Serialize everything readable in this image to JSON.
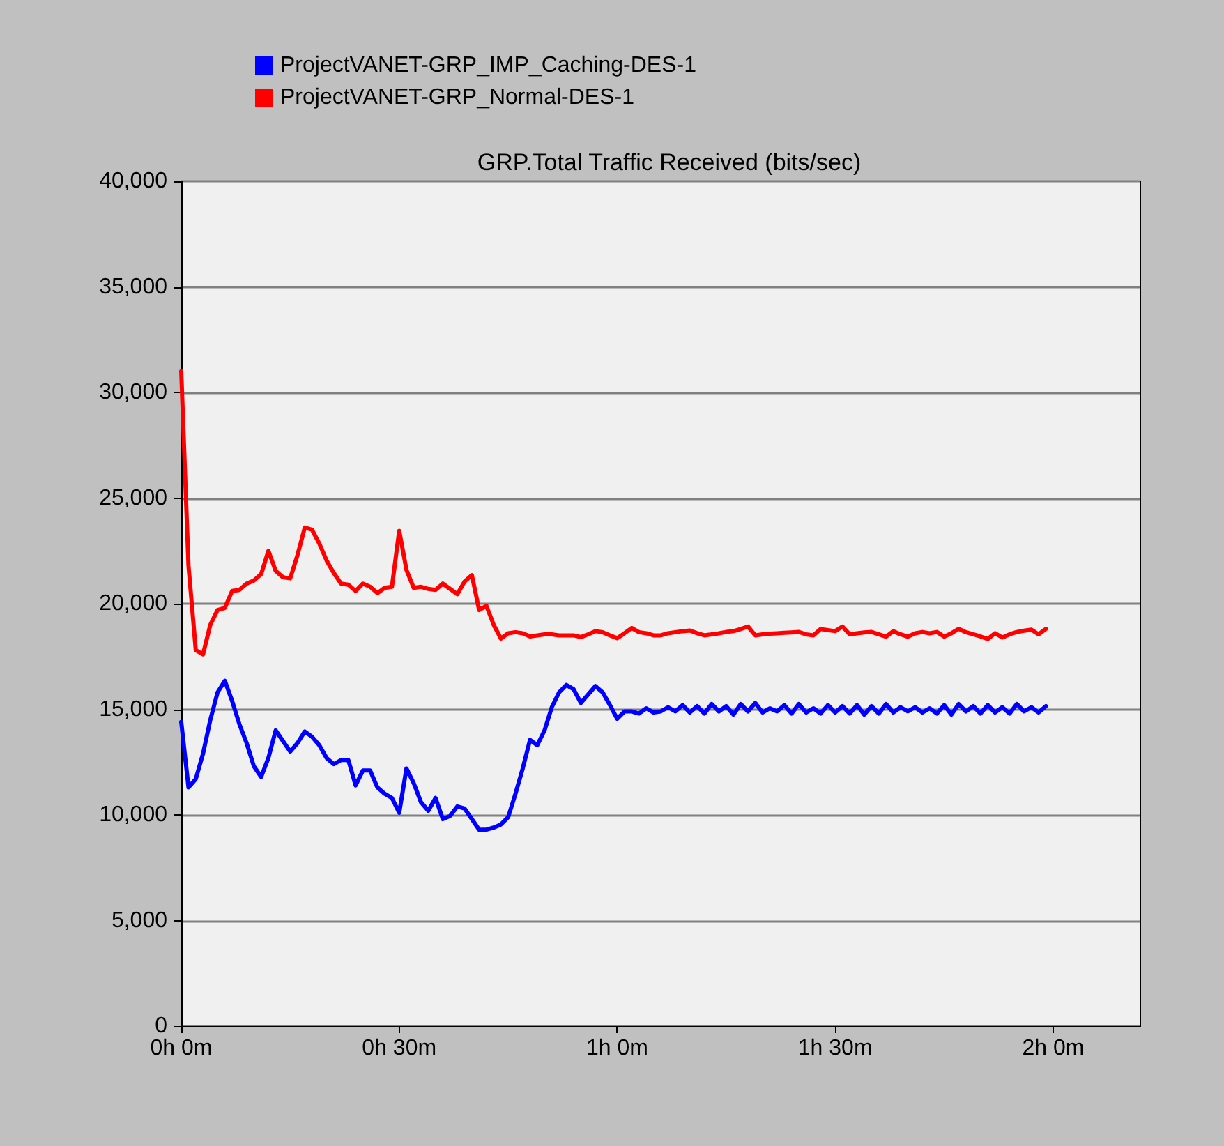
{
  "chart_data": {
    "type": "line",
    "title": "GRP.Total Traffic Received (bits/sec)",
    "categories": [
      "0h 0m",
      null,
      null,
      null,
      null,
      null,
      null,
      null,
      null,
      null,
      null,
      null,
      null,
      null,
      null,
      null,
      null,
      null,
      null,
      null,
      null,
      null,
      null,
      null,
      null,
      null,
      null,
      null,
      null,
      null,
      "0h 30m",
      null,
      null,
      null,
      null,
      null,
      null,
      null,
      null,
      null,
      null,
      null,
      null,
      null,
      null,
      null,
      null,
      null,
      null,
      null,
      null,
      null,
      null,
      null,
      null,
      null,
      null,
      null,
      null,
      null,
      "1h 0m",
      null,
      null,
      null,
      null,
      null,
      null,
      null,
      null,
      null,
      null,
      null,
      null,
      null,
      null,
      null,
      null,
      null,
      null,
      null,
      null,
      null,
      null,
      null,
      null,
      null,
      null,
      null,
      null,
      null,
      "1h 30m",
      null,
      null,
      null,
      null,
      null,
      null,
      null,
      null,
      null,
      null,
      null,
      null,
      null,
      null,
      null,
      null,
      null,
      null,
      null,
      null,
      null,
      null,
      null,
      null,
      null,
      null,
      null,
      null,
      null,
      "2h 0m",
      null,
      null,
      null,
      null,
      null,
      null,
      null,
      null,
      null,
      null,
      null,
      null
    ],
    "ylim": [
      0,
      40000
    ],
    "yticks": [
      {
        "value": 0,
        "label": "0"
      },
      {
        "value": 5000,
        "label": "5,000"
      },
      {
        "value": 10000,
        "label": "10,000"
      },
      {
        "value": 15000,
        "label": "15,000"
      },
      {
        "value": 20000,
        "label": "20,000"
      },
      {
        "value": 25000,
        "label": "25,000"
      },
      {
        "value": 30000,
        "label": "30,000"
      },
      {
        "value": 35000,
        "label": "35,000"
      },
      {
        "value": 40000,
        "label": "40,000"
      }
    ],
    "grid": "y",
    "legend": "top left",
    "marker": "none",
    "line_style": "solid",
    "series": [
      {
        "name": "ProjectVANET-GRP_IMP_Caching-DES-1",
        "color": "#0000ff",
        "values": [
          14400,
          11300,
          11700,
          12900,
          14500,
          15800,
          16350,
          15400,
          14300,
          13400,
          12300,
          11800,
          12700,
          14000,
          13500,
          13000,
          13400,
          13950,
          13700,
          13300,
          12700,
          12400,
          12600,
          12600,
          11400,
          12100,
          12100,
          11300,
          11000,
          10800,
          10100,
          12200,
          11500,
          10600,
          10200,
          10800,
          9800,
          9950,
          10400,
          10300,
          9800,
          9300,
          9300,
          9400,
          9550,
          9900,
          11000,
          12200,
          13550,
          13300,
          14000,
          15100,
          15800,
          16150,
          15950,
          15300,
          15700,
          16100,
          15800,
          15200,
          14550,
          14900,
          14900,
          14800,
          15050,
          14850,
          14900,
          15100,
          14900,
          15200,
          14850,
          15150,
          14800,
          15250,
          14900,
          15150,
          14750,
          15250,
          14900,
          15300,
          14850,
          15050,
          14900,
          15200,
          14800,
          15250,
          14850,
          15050,
          14800,
          15200,
          14850,
          15150,
          14800,
          15200,
          14750,
          15150,
          14800,
          15250,
          14850,
          15100,
          14900,
          15100,
          14850,
          15050,
          14800,
          15200,
          14750,
          15250,
          14900,
          15150,
          14800,
          15200,
          14850,
          15100,
          14800,
          15250,
          14900,
          15100,
          14850,
          15150,
          null,
          null,
          null,
          null,
          null,
          null,
          null,
          null,
          null,
          null,
          null,
          null,
          null
        ]
      },
      {
        "name": "ProjectVANET-GRP_Normal-DES-1",
        "color": "#ff0000",
        "values": [
          31000,
          21800,
          17800,
          17600,
          19000,
          19700,
          19800,
          20600,
          20650,
          20950,
          21100,
          21400,
          22500,
          21550,
          21250,
          21200,
          22300,
          23600,
          23500,
          22850,
          22050,
          21450,
          20950,
          20900,
          20600,
          20950,
          20800,
          20500,
          20750,
          20800,
          23450,
          21600,
          20750,
          20800,
          20700,
          20650,
          20950,
          20700,
          20450,
          21050,
          21350,
          19700,
          19900,
          19000,
          18350,
          18600,
          18650,
          18600,
          18450,
          18500,
          18550,
          18550,
          18500,
          18500,
          18500,
          18420,
          18550,
          18700,
          18650,
          18500,
          18370,
          18600,
          18850,
          18650,
          18600,
          18500,
          18500,
          18600,
          18650,
          18700,
          18730,
          18600,
          18500,
          18550,
          18600,
          18660,
          18700,
          18800,
          18920,
          18500,
          18550,
          18580,
          18600,
          18620,
          18640,
          18660,
          18550,
          18500,
          18800,
          18750,
          18700,
          18920,
          18550,
          18600,
          18640,
          18660,
          18550,
          18440,
          18700,
          18550,
          18440,
          18600,
          18660,
          18600,
          18660,
          18440,
          18600,
          18810,
          18650,
          18550,
          18450,
          18330,
          18600,
          18400,
          18550,
          18660,
          18720,
          18770,
          18550,
          18810,
          null,
          null,
          null,
          null,
          null,
          null,
          null,
          null,
          null,
          null,
          null,
          null,
          null
        ]
      }
    ]
  }
}
